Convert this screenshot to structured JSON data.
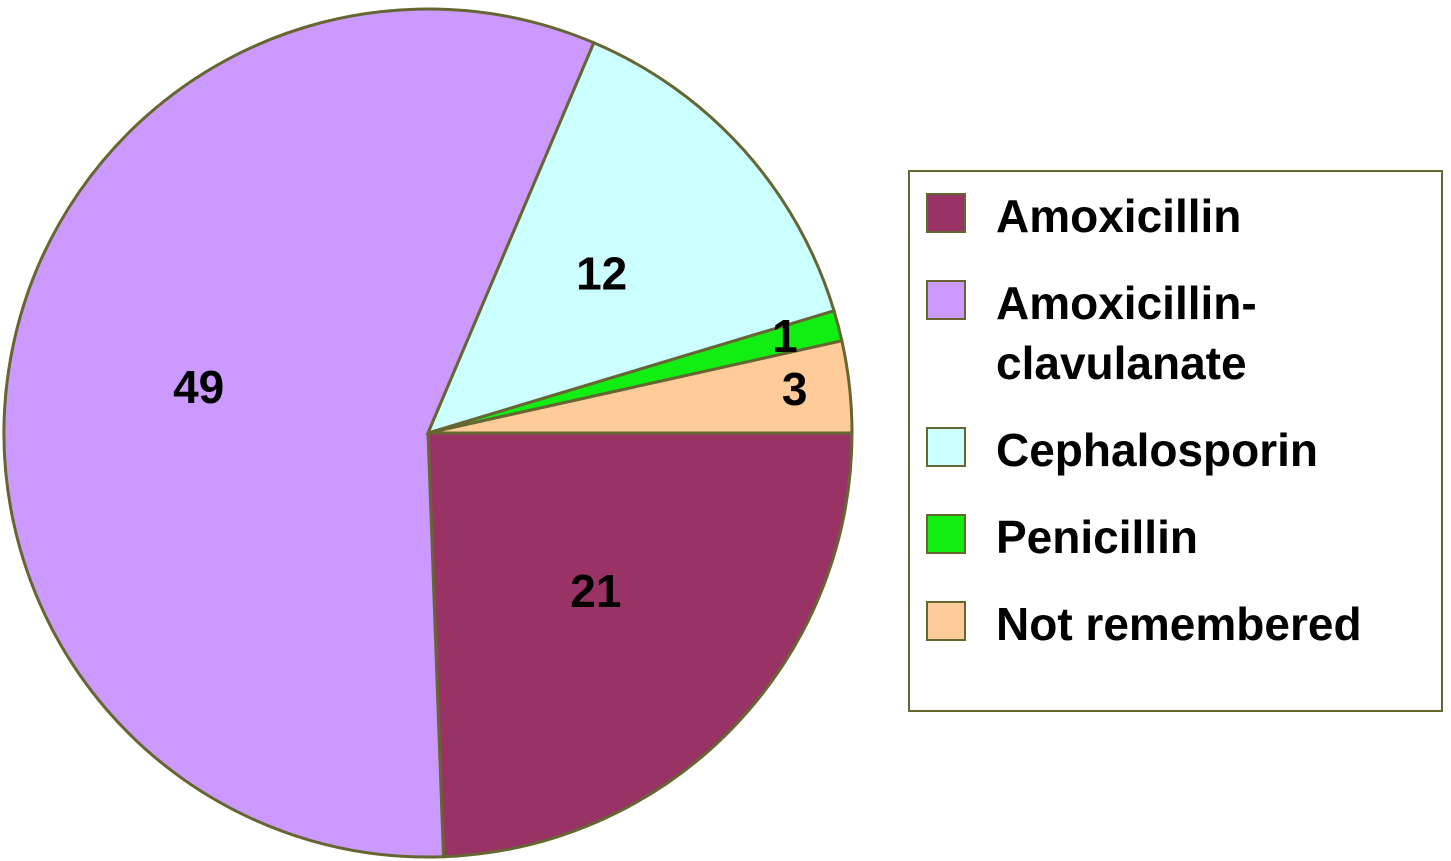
{
  "chart_data": {
    "type": "pie",
    "categories": [
      "Amoxicillin",
      "Amoxicillin-clavulanate",
      "Cephalosporin",
      "Penicillin",
      "Not remembered"
    ],
    "values": [
      21,
      49,
      12,
      1,
      3
    ],
    "colors": [
      "#993366",
      "#cc99ff",
      "#ccffff",
      "#11ee11",
      "#ffcc99"
    ],
    "legend": "right"
  }
}
